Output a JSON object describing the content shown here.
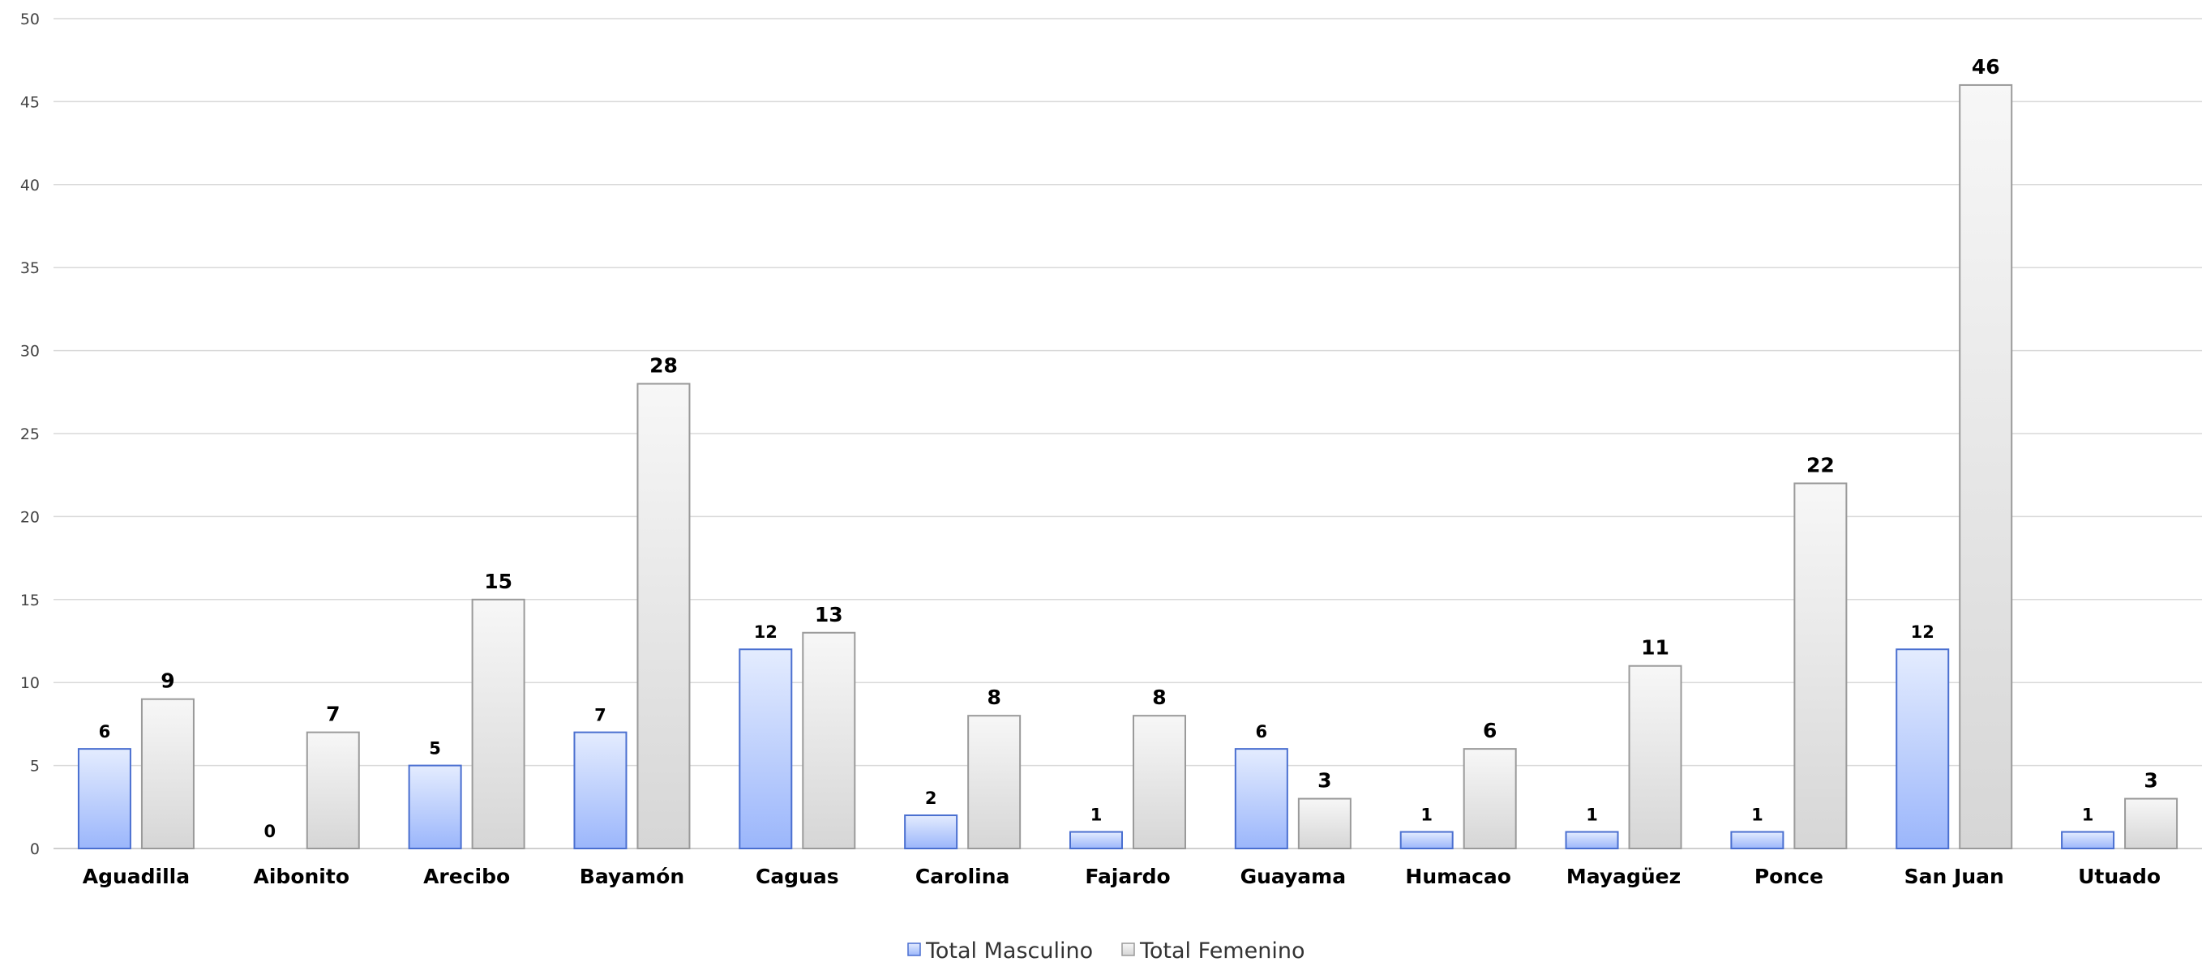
{
  "chart_data": {
    "type": "bar",
    "categories": [
      "Aguadilla",
      "Aibonito",
      "Arecibo",
      "Bayamón",
      "Caguas",
      "Carolina",
      "Fajardo",
      "Guayama",
      "Humacao",
      "Mayagüez",
      "Ponce",
      "San Juan",
      "Utuado"
    ],
    "series": [
      {
        "name": "Total Masculino",
        "values": [
          6,
          0,
          5,
          7,
          12,
          2,
          1,
          6,
          1,
          1,
          1,
          12,
          1
        ],
        "color": "#4472c4"
      },
      {
        "name": "Total Femenino",
        "values": [
          9,
          7,
          15,
          28,
          13,
          8,
          8,
          3,
          6,
          11,
          22,
          46,
          3
        ],
        "color": "#a5a5a5"
      }
    ],
    "ylim": [
      0,
      50
    ],
    "yticks": [
      0,
      5,
      10,
      15,
      20,
      25,
      30,
      35,
      40,
      45,
      50
    ],
    "grid": true,
    "data_labels": true,
    "legend_position": "bottom"
  }
}
